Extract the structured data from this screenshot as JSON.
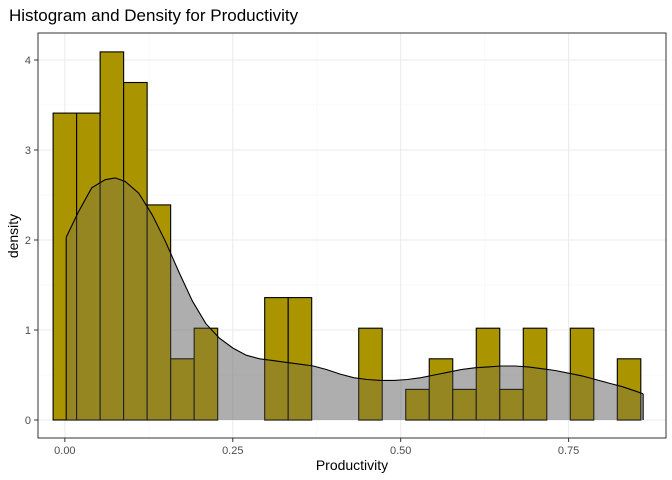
{
  "chart_data": {
    "type": "bar",
    "title": "Histogram and Density for Productivity",
    "xlabel": "Productivity",
    "ylabel": "density",
    "xlim": [
      -0.04,
      0.895
    ],
    "ylim": [
      -0.2,
      4.3
    ],
    "x_ticks": [
      0.0,
      0.25,
      0.5,
      0.75
    ],
    "x_tick_labels": [
      "0.00",
      "0.25",
      "0.50",
      "0.75"
    ],
    "y_ticks": [
      0,
      1,
      2,
      3,
      4
    ],
    "y_tick_labels": [
      "0",
      "1",
      "2",
      "3",
      "4"
    ],
    "grid": true,
    "colors": {
      "bar_fill": "#AA9400",
      "bar_stroke": "#000000",
      "density_fill": "#6b6b6b",
      "density_fill_opacity": 0.32,
      "density_stroke": "#000000",
      "grid_major": "#ebebeb",
      "grid_minor": "#f5f5f5",
      "panel_border": "#333333"
    },
    "histogram": {
      "bins": [
        {
          "x0": -0.0175,
          "x1": 0.0175,
          "density": 3.41
        },
        {
          "x0": 0.0175,
          "x1": 0.0525,
          "density": 3.41
        },
        {
          "x0": 0.0525,
          "x1": 0.0875,
          "density": 4.09
        },
        {
          "x0": 0.0875,
          "x1": 0.1225,
          "density": 3.75
        },
        {
          "x0": 0.1225,
          "x1": 0.1575,
          "density": 2.39
        },
        {
          "x0": 0.1575,
          "x1": 0.1925,
          "density": 0.68
        },
        {
          "x0": 0.1925,
          "x1": 0.2275,
          "density": 1.02
        },
        {
          "x0": 0.2275,
          "x1": 0.2625,
          "density": 0
        },
        {
          "x0": 0.2625,
          "x1": 0.2975,
          "density": 0
        },
        {
          "x0": 0.2975,
          "x1": 0.3325,
          "density": 1.36
        },
        {
          "x0": 0.3325,
          "x1": 0.3675,
          "density": 1.36
        },
        {
          "x0": 0.3675,
          "x1": 0.4025,
          "density": 0
        },
        {
          "x0": 0.4025,
          "x1": 0.4375,
          "density": 0
        },
        {
          "x0": 0.4375,
          "x1": 0.4725,
          "density": 1.02
        },
        {
          "x0": 0.4725,
          "x1": 0.5075,
          "density": 0
        },
        {
          "x0": 0.5075,
          "x1": 0.5425,
          "density": 0.34
        },
        {
          "x0": 0.5425,
          "x1": 0.5775,
          "density": 0.68
        },
        {
          "x0": 0.5775,
          "x1": 0.6125,
          "density": 0.34
        },
        {
          "x0": 0.6125,
          "x1": 0.6475,
          "density": 1.02
        },
        {
          "x0": 0.6475,
          "x1": 0.6825,
          "density": 0.34
        },
        {
          "x0": 0.6825,
          "x1": 0.7175,
          "density": 1.02
        },
        {
          "x0": 0.7175,
          "x1": 0.7525,
          "density": 0
        },
        {
          "x0": 0.7525,
          "x1": 0.7875,
          "density": 1.02
        },
        {
          "x0": 0.7875,
          "x1": 0.8225,
          "density": 0
        },
        {
          "x0": 0.8225,
          "x1": 0.8575,
          "density": 0.68
        }
      ]
    },
    "density": {
      "x": [
        0.002,
        0.02,
        0.04,
        0.06,
        0.075,
        0.09,
        0.11,
        0.13,
        0.15,
        0.17,
        0.19,
        0.21,
        0.23,
        0.25,
        0.27,
        0.29,
        0.31,
        0.33,
        0.35,
        0.37,
        0.39,
        0.41,
        0.43,
        0.45,
        0.47,
        0.49,
        0.51,
        0.53,
        0.55,
        0.57,
        0.59,
        0.61,
        0.63,
        0.65,
        0.67,
        0.69,
        0.71,
        0.73,
        0.75,
        0.77,
        0.79,
        0.81,
        0.83,
        0.85,
        0.861
      ],
      "y": [
        2.03,
        2.31,
        2.58,
        2.67,
        2.69,
        2.65,
        2.52,
        2.28,
        1.98,
        1.64,
        1.32,
        1.07,
        0.91,
        0.8,
        0.72,
        0.68,
        0.66,
        0.64,
        0.62,
        0.6,
        0.56,
        0.51,
        0.47,
        0.45,
        0.44,
        0.44,
        0.45,
        0.47,
        0.5,
        0.53,
        0.56,
        0.58,
        0.59,
        0.6,
        0.6,
        0.59,
        0.57,
        0.55,
        0.52,
        0.49,
        0.45,
        0.41,
        0.37,
        0.32,
        0.29
      ]
    }
  }
}
